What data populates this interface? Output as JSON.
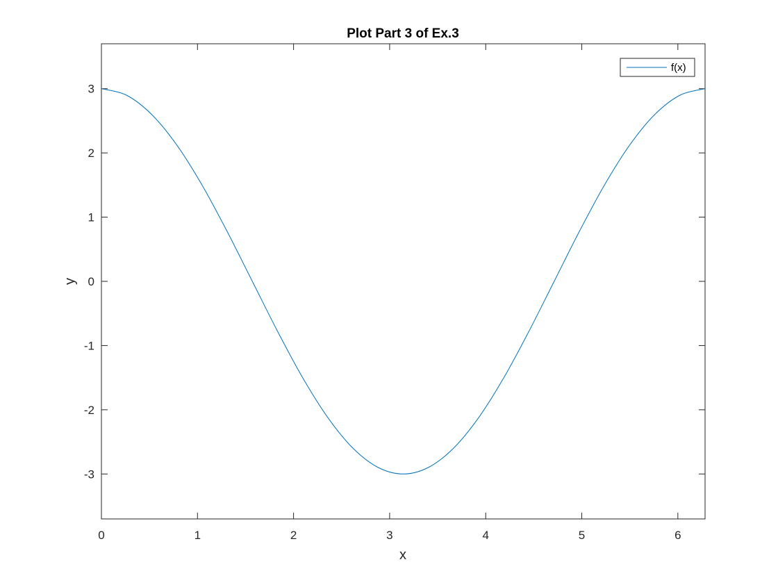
{
  "chart_data": {
    "type": "line",
    "title": "Plot Part 3 of Ex.3",
    "xlabel": "x",
    "ylabel": "y",
    "xlim": [
      0,
      6.2832
    ],
    "ylim": [
      -3.7,
      3.7
    ],
    "xticks": [
      0,
      1,
      2,
      3,
      4,
      5,
      6
    ],
    "yticks": [
      -3,
      -2,
      -1,
      0,
      1,
      2,
      3
    ],
    "grid": false,
    "legend": "top-right",
    "series": [
      {
        "name": "f(x)",
        "color": "#0072BD",
        "x": [
          0,
          0.2618,
          0.5236,
          0.7854,
          1.0472,
          1.309,
          1.5708,
          1.8326,
          2.0944,
          2.3562,
          2.618,
          2.8798,
          3.1416,
          3.4034,
          3.6652,
          3.927,
          4.1888,
          4.4506,
          4.7124,
          4.9742,
          5.236,
          5.4978,
          5.7596,
          6.0214,
          6.2832
        ],
        "y": [
          3,
          2.898,
          2.598,
          2.121,
          1.5,
          0.776,
          0,
          -0.776,
          -1.5,
          -2.121,
          -2.598,
          -2.898,
          -3,
          -2.898,
          -2.598,
          -2.121,
          -1.5,
          -0.776,
          0,
          0.776,
          1.5,
          2.121,
          2.598,
          2.898,
          3
        ]
      }
    ]
  }
}
